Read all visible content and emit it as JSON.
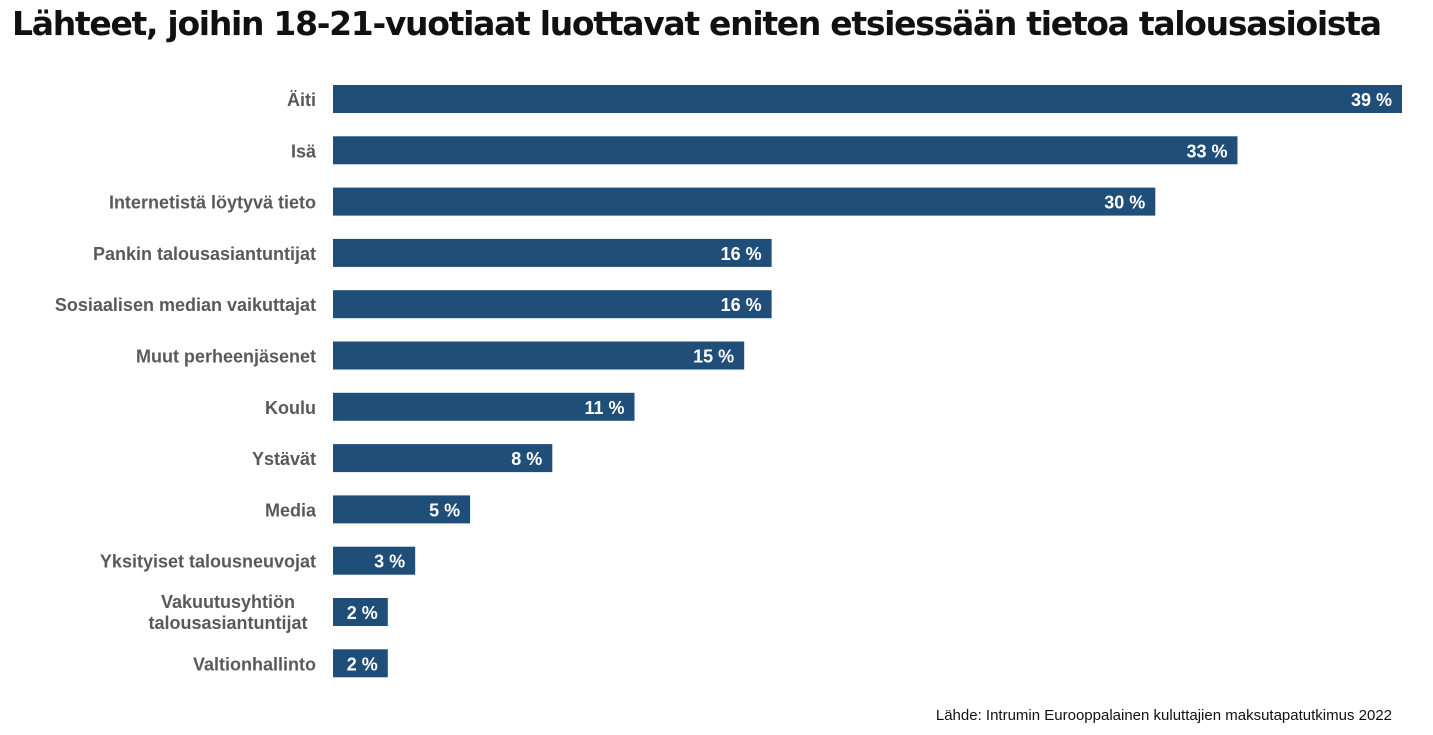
{
  "title": "Lähteet, joihin 18-21-vuotiaat luottavat eniten etsiessään tietoa talousasioista",
  "source": "Lähde: Intrumin Eurooppalainen kuluttajien maksutapatutkimus 2022",
  "colors": {
    "bar": "#1f4e79",
    "category_label": "#595959",
    "value_label": "#ffffff",
    "title": "#111111"
  },
  "chart_data": {
    "type": "bar",
    "orientation": "horizontal",
    "title": "Lähteet, joihin 18-21-vuotiaat luottavat eniten etsiessään tietoa talousasioista",
    "xlabel": "",
    "ylabel": "",
    "unit": "%",
    "xlim": [
      0,
      39
    ],
    "grid": false,
    "legend": "none",
    "categories": [
      "Äiti",
      "Isä",
      "Internetistä löytyvä tieto",
      "Pankin talousasiantuntijat",
      "Sosiaalisen median vaikuttajat",
      "Muut perheenjäsenet",
      "Koulu",
      "Ystävät",
      "Media",
      "Yksityiset talousneuvojat",
      "Vakuutusyhtiön talousasiantuntijat",
      "Valtionhallinto"
    ],
    "values": [
      39,
      33,
      30,
      16,
      16,
      15,
      11,
      8,
      5,
      3,
      2,
      2
    ],
    "value_labels": [
      "39 %",
      "33 %",
      "30 %",
      "16 %",
      "16 %",
      "15 %",
      "11 %",
      "8 %",
      "5 %",
      "3 %",
      "2 %",
      "2 %"
    ]
  }
}
